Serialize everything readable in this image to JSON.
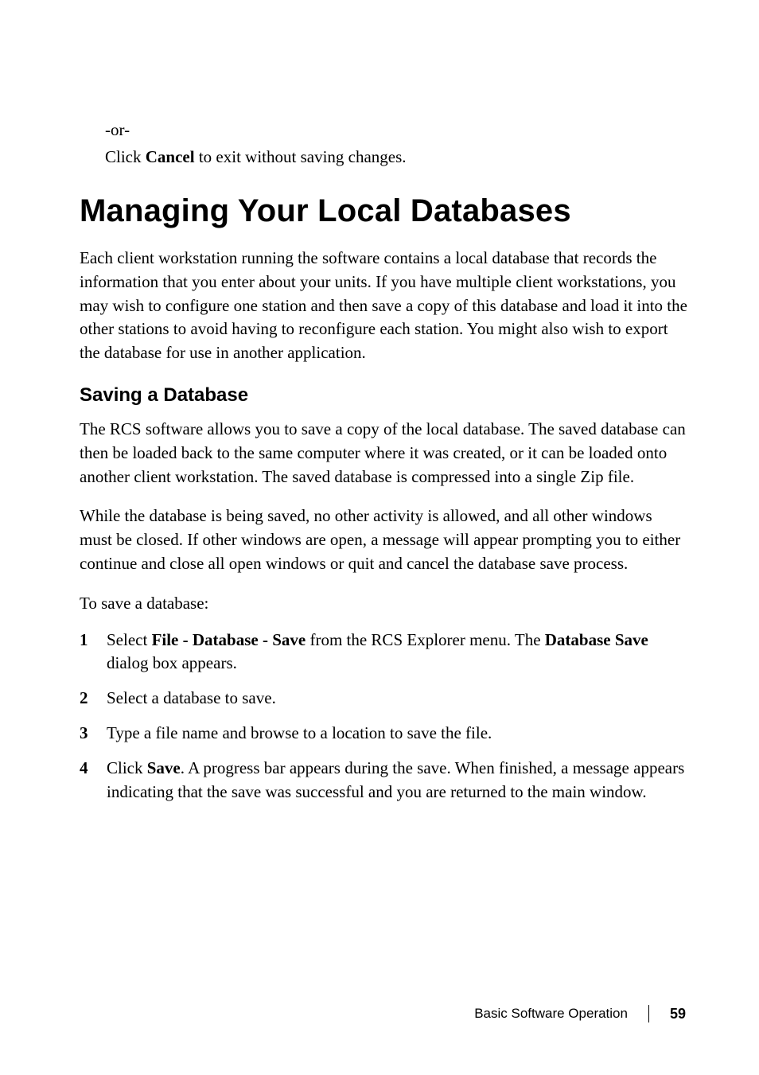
{
  "colors": {
    "text": "#000000",
    "background": "#ffffff"
  },
  "fonts": {
    "serif_family": "Georgia, 'Times New Roman', serif",
    "sans_family": "Arial, Helvetica, sans-serif",
    "body_size_pt": 16,
    "h1_size_pt": 30,
    "h2_size_pt": 18,
    "footer_size_pt": 13
  },
  "top": {
    "or": "-or-",
    "cancel_prefix": "Click ",
    "cancel_bold": "Cancel",
    "cancel_suffix": " to exit without saving changes."
  },
  "h1": "Managing Your Local Databases",
  "intro": "Each client workstation running the software contains a local database that records the information that you enter about your units. If you have multiple client workstations, you may wish to configure one station and then save a copy of this database and load it into the other stations to avoid having to reconfigure each station. You might also wish to export the database for use in another application.",
  "h2": "Saving a Database",
  "p1": "The RCS software allows you to save a copy of the local database. The saved database can then be loaded back to the same computer where it was created, or it can be loaded onto another client workstation. The saved database is compressed into a single Zip file.",
  "p2": "While the database is being saved, no other activity is allowed, and all other windows must be closed. If other windows are open, a message will appear prompting you to either continue and close all open windows or quit and cancel the database save process.",
  "lead": "To save a database:",
  "steps": {
    "s1_a": "Select ",
    "s1_b": "File - Database - Save",
    "s1_c": " from the RCS Explorer menu. The ",
    "s1_d": "Database Save",
    "s1_e": " dialog box appears.",
    "s2": "Select a database to save.",
    "s3": "Type a file name and browse to a location to save the file.",
    "s4_a": "Click ",
    "s4_b": "Save",
    "s4_c": ". A progress bar appears during the save. When finished, a message appears indicating that the save was successful and you are returned to the main window."
  },
  "footer": {
    "section": "Basic Software Operation",
    "page": "59"
  }
}
